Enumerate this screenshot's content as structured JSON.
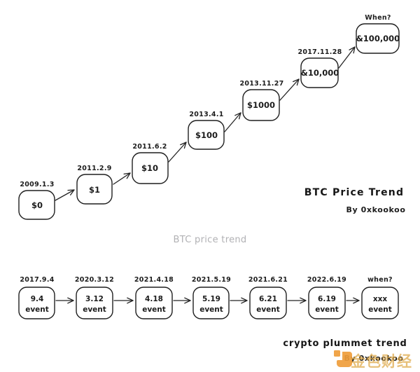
{
  "titles": {
    "main_title": "BTC Price Trend",
    "main_byline": "By 0xkookoo",
    "caption": "BTC price trend",
    "bottom_title": "crypto plummet trend",
    "bottom_byline": "By 0xkookoo",
    "watermark": "金色财经"
  },
  "chart_data": {
    "type": "timeline-diagram",
    "price_trend": {
      "title": "BTC Price Trend",
      "nodes": [
        {
          "date": "2009.1.3",
          "value": "$0"
        },
        {
          "date": "2011.2.9",
          "value": "$1"
        },
        {
          "date": "2011.6.2",
          "value": "$10"
        },
        {
          "date": "2013.4.1",
          "value": "$100"
        },
        {
          "date": "2013.11.27",
          "value": "$1000"
        },
        {
          "date": "2017.11.28",
          "value": "&10,000"
        },
        {
          "date": "When?",
          "value": "&100,000"
        }
      ]
    },
    "plummet_trend": {
      "title": "crypto plummet trend",
      "nodes": [
        {
          "date": "2017.9.4",
          "line1": "9.4",
          "line2": "event"
        },
        {
          "date": "2020.3.12",
          "line1": "3.12",
          "line2": "event"
        },
        {
          "date": "2021.4.18",
          "line1": "4.18",
          "line2": "event"
        },
        {
          "date": "2021.5.19",
          "line1": "5.19",
          "line2": "event"
        },
        {
          "date": "2021.6.21",
          "line1": "6.21",
          "line2": "event"
        },
        {
          "date": "2022.6.19",
          "line1": "6.19",
          "line2": "event"
        },
        {
          "date": "when?",
          "line1": "xxx",
          "line2": "event"
        }
      ]
    }
  },
  "price_nodes": [
    {
      "date": "2009.1.3",
      "value": "$0"
    },
    {
      "date": "2011.2.9",
      "value": "$1"
    },
    {
      "date": "2011.6.2",
      "value": "$10"
    },
    {
      "date": "2013.4.1",
      "value": "$100"
    },
    {
      "date": "2013.11.27",
      "value": "$1000"
    },
    {
      "date": "2017.11.28",
      "value": "&10,000"
    },
    {
      "date": "When?",
      "value": "&100,000"
    }
  ],
  "event_nodes": [
    {
      "date": "2017.9.4",
      "line1": "9.4",
      "line2": "event"
    },
    {
      "date": "2020.3.12",
      "line1": "3.12",
      "line2": "event"
    },
    {
      "date": "2021.4.18",
      "line1": "4.18",
      "line2": "event"
    },
    {
      "date": "2021.5.19",
      "line1": "5.19",
      "line2": "event"
    },
    {
      "date": "2021.6.21",
      "line1": "6.21",
      "line2": "event"
    },
    {
      "date": "2022.6.19",
      "line1": "6.19",
      "line2": "event"
    },
    {
      "date": "when?",
      "line1": "xxx",
      "line2": "event"
    }
  ],
  "colors": {
    "ink": "#1c1c1c",
    "caption_gray": "#b1b1b4",
    "watermark_orange": "#ef9d3b",
    "watermark_gold": "#dfa948"
  }
}
